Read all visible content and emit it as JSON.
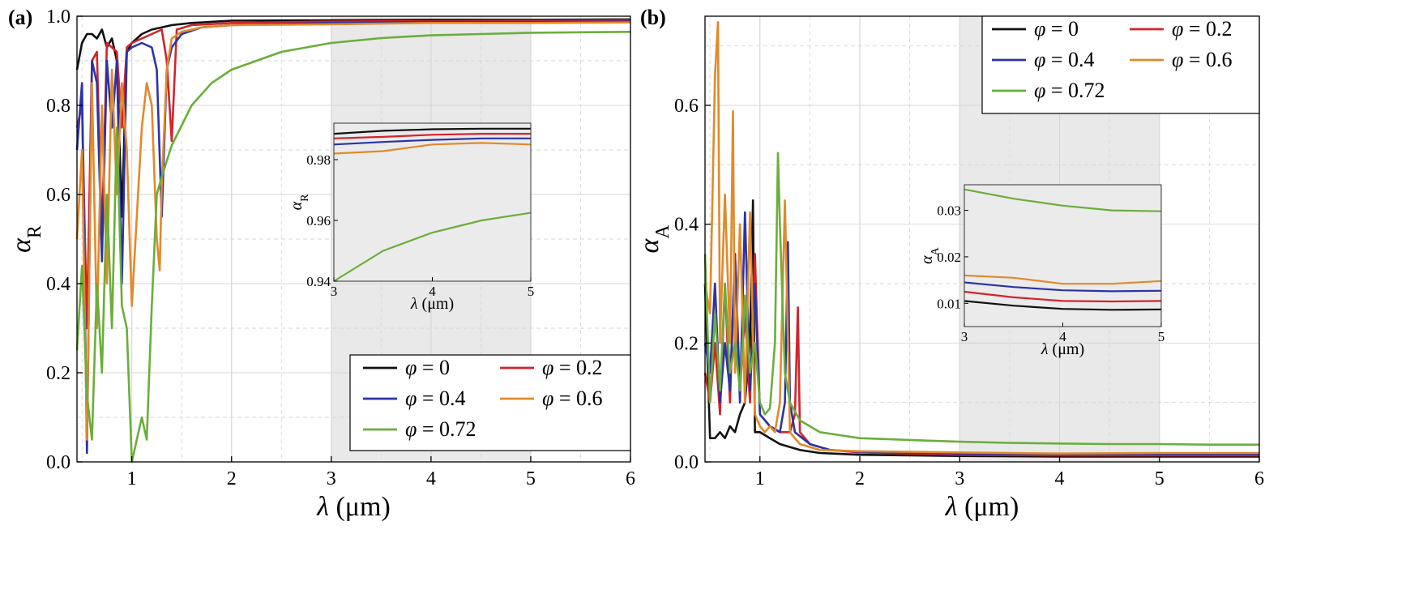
{
  "chart_data": [
    {
      "type": "line",
      "panel_label": "(a)",
      "xlabel_sym": "λ",
      "xlabel_unit": " (μm)",
      "ylabel_sym": "α",
      "ylabel_sub": "R",
      "xlim": [
        0.45,
        6
      ],
      "ylim": [
        0,
        1.0
      ],
      "xticks": [
        1,
        2,
        3,
        4,
        5,
        6
      ],
      "xtick_labels": [
        "1",
        "2",
        "3",
        "4",
        "5",
        "6"
      ],
      "yticks": [
        0,
        0.2,
        0.4,
        0.6,
        0.8,
        1.0
      ],
      "ytick_labels": [
        "0.0",
        "0.2",
        "0.4",
        "0.6",
        "0.8",
        "1.0"
      ],
      "shaded_region": [
        3,
        5
      ],
      "legend_position": "bottom-right",
      "series": [
        {
          "name": "φ = 0",
          "sym": "φ",
          "val": " = 0",
          "color": "#111111",
          "x": [
            0.45,
            0.5,
            0.55,
            0.6,
            0.65,
            0.7,
            0.75,
            0.8,
            0.85,
            0.9,
            0.95,
            1.0,
            1.1,
            1.2,
            1.4,
            1.6,
            2,
            3,
            4,
            5,
            6
          ],
          "y": [
            0.88,
            0.94,
            0.96,
            0.96,
            0.95,
            0.97,
            0.93,
            0.95,
            0.9,
            0.55,
            0.92,
            0.94,
            0.96,
            0.97,
            0.98,
            0.985,
            0.99,
            0.991,
            0.992,
            0.992,
            0.993
          ]
        },
        {
          "name": "φ = 0.2",
          "sym": "φ",
          "val": " = 0.2",
          "color": "#d4232b",
          "x": [
            0.45,
            0.5,
            0.55,
            0.6,
            0.65,
            0.7,
            0.75,
            0.8,
            0.85,
            0.9,
            0.95,
            1.0,
            1.1,
            1.2,
            1.3,
            1.35,
            1.4,
            1.45,
            1.6,
            2,
            3,
            4,
            5,
            6
          ],
          "y": [
            0.75,
            0.8,
            0.3,
            0.9,
            0.92,
            0.5,
            0.94,
            0.93,
            0.92,
            0.75,
            0.93,
            0.94,
            0.95,
            0.96,
            0.97,
            0.9,
            0.72,
            0.97,
            0.98,
            0.985,
            0.988,
            0.989,
            0.99,
            0.991
          ]
        },
        {
          "name": "φ = 0.4",
          "sym": "φ",
          "val": " = 0.4",
          "color": "#2b33a6",
          "x": [
            0.45,
            0.5,
            0.55,
            0.6,
            0.65,
            0.7,
            0.75,
            0.8,
            0.85,
            0.9,
            0.95,
            1.0,
            1.1,
            1.2,
            1.25,
            1.3,
            1.35,
            1.4,
            1.5,
            1.7,
            2,
            3,
            4,
            5,
            6
          ],
          "y": [
            0.7,
            0.85,
            0.02,
            0.9,
            0.85,
            0.45,
            0.9,
            0.75,
            0.9,
            0.4,
            0.92,
            0.93,
            0.94,
            0.93,
            0.88,
            0.55,
            0.88,
            0.93,
            0.96,
            0.975,
            0.98,
            0.985,
            0.987,
            0.987,
            0.988
          ]
        },
        {
          "name": "φ = 0.6",
          "sym": "φ",
          "val": " = 0.6",
          "color": "#e08a2c",
          "x": [
            0.45,
            0.5,
            0.55,
            0.6,
            0.65,
            0.7,
            0.75,
            0.8,
            0.85,
            0.9,
            0.95,
            1.0,
            1.05,
            1.1,
            1.15,
            1.2,
            1.25,
            1.28,
            1.3,
            1.35,
            1.4,
            1.5,
            1.7,
            2,
            3,
            4,
            5,
            6
          ],
          "y": [
            0.5,
            0.7,
            0.05,
            0.85,
            0.3,
            0.8,
            0.4,
            0.88,
            0.6,
            0.85,
            0.7,
            0.35,
            0.55,
            0.75,
            0.85,
            0.8,
            0.5,
            0.43,
            0.62,
            0.88,
            0.95,
            0.965,
            0.975,
            0.98,
            0.982,
            0.985,
            0.985,
            0.986
          ]
        },
        {
          "name": "φ = 0.72",
          "sym": "φ",
          "val": " = 0.72",
          "color": "#6aae3b",
          "x": [
            0.45,
            0.5,
            0.55,
            0.6,
            0.65,
            0.7,
            0.75,
            0.8,
            0.85,
            0.9,
            0.95,
            1.0,
            1.05,
            1.1,
            1.15,
            1.2,
            1.25,
            1.3,
            1.4,
            1.6,
            1.8,
            2.0,
            2.5,
            3.0,
            3.5,
            4.0,
            4.5,
            5.0,
            5.5,
            6.0
          ],
          "y": [
            0.25,
            0.44,
            0.15,
            0.05,
            0.4,
            0.2,
            0.6,
            0.3,
            0.75,
            0.35,
            0.3,
            0.0,
            0.05,
            0.1,
            0.05,
            0.35,
            0.6,
            0.64,
            0.71,
            0.8,
            0.85,
            0.88,
            0.92,
            0.94,
            0.951,
            0.957,
            0.96,
            0.963,
            0.964,
            0.965
          ]
        }
      ],
      "inset": {
        "xlim": [
          3,
          5
        ],
        "ylim": [
          0.94,
          0.992
        ],
        "xticks": [
          3,
          4,
          5
        ],
        "xtick_labels": [
          "3",
          "4",
          "5"
        ],
        "yticks": [
          0.94,
          0.96,
          0.98
        ],
        "ytick_labels": [
          "0.94",
          "0.96",
          "0.98"
        ],
        "xlabel_sym": "λ",
        "xlabel_unit": " (μm)",
        "ylabel_sym": "α",
        "ylabel_sub": "R",
        "series_y": [
          [
            0.9885,
            0.9895,
            0.99,
            0.9902,
            0.9902
          ],
          [
            0.987,
            0.9875,
            0.9882,
            0.9885,
            0.9885
          ],
          [
            0.985,
            0.9858,
            0.9865,
            0.987,
            0.987
          ],
          [
            0.982,
            0.9828,
            0.985,
            0.9855,
            0.985
          ],
          [
            0.94,
            0.95,
            0.956,
            0.96,
            0.9625
          ]
        ],
        "series_x": [
          3,
          3.5,
          4,
          4.5,
          5
        ]
      }
    },
    {
      "type": "line",
      "panel_label": "(b)",
      "xlabel_sym": "λ",
      "xlabel_unit": " (μm)",
      "ylabel_sym": "α",
      "ylabel_sub": "A",
      "xlim": [
        0.45,
        6
      ],
      "ylim": [
        0,
        0.75
      ],
      "xticks": [
        1,
        2,
        3,
        4,
        5,
        6
      ],
      "xtick_labels": [
        "1",
        "2",
        "3",
        "4",
        "5",
        "6"
      ],
      "yticks": [
        0,
        0.2,
        0.4,
        0.6
      ],
      "ytick_labels": [
        "0.0",
        "0.2",
        "0.4",
        "0.6"
      ],
      "shaded_region": [
        3,
        5
      ],
      "legend_position": "top-right",
      "series": [
        {
          "name": "φ = 0",
          "sym": "φ",
          "val": " = 0",
          "color": "#111111",
          "x": [
            0.45,
            0.5,
            0.55,
            0.6,
            0.65,
            0.7,
            0.75,
            0.8,
            0.85,
            0.9,
            0.93,
            0.95,
            1.0,
            1.1,
            1.2,
            1.4,
            1.6,
            2,
            3,
            4,
            5,
            6
          ],
          "y": [
            0.3,
            0.04,
            0.04,
            0.05,
            0.04,
            0.06,
            0.05,
            0.08,
            0.1,
            0.2,
            0.44,
            0.05,
            0.05,
            0.04,
            0.03,
            0.02,
            0.015,
            0.012,
            0.01,
            0.009,
            0.009,
            0.009
          ]
        },
        {
          "name": "φ = 0.2",
          "sym": "φ",
          "val": " = 0.2",
          "color": "#d4232b",
          "x": [
            0.45,
            0.5,
            0.55,
            0.6,
            0.65,
            0.7,
            0.75,
            0.8,
            0.85,
            0.9,
            0.95,
            1.0,
            1.1,
            1.2,
            1.3,
            1.35,
            1.38,
            1.4,
            1.5,
            1.7,
            2,
            3,
            4,
            5,
            6
          ],
          "y": [
            0.15,
            0.1,
            0.2,
            0.08,
            0.3,
            0.1,
            0.35,
            0.12,
            0.25,
            0.1,
            0.35,
            0.08,
            0.06,
            0.05,
            0.05,
            0.08,
            0.26,
            0.05,
            0.03,
            0.02,
            0.016,
            0.012,
            0.011,
            0.011,
            0.011
          ]
        },
        {
          "name": "φ = 0.4",
          "sym": "φ",
          "val": " = 0.4",
          "color": "#2b33a6",
          "x": [
            0.45,
            0.5,
            0.55,
            0.6,
            0.65,
            0.7,
            0.75,
            0.8,
            0.85,
            0.9,
            0.95,
            1.0,
            1.1,
            1.2,
            1.25,
            1.28,
            1.3,
            1.35,
            1.5,
            1.7,
            2,
            3,
            4,
            5,
            6
          ],
          "y": [
            0.2,
            0.15,
            0.3,
            0.1,
            0.2,
            0.12,
            0.35,
            0.1,
            0.42,
            0.12,
            0.3,
            0.08,
            0.06,
            0.05,
            0.1,
            0.37,
            0.1,
            0.05,
            0.03,
            0.02,
            0.017,
            0.014,
            0.013,
            0.013,
            0.013
          ]
        },
        {
          "name": "φ = 0.6",
          "sym": "φ",
          "val": " = 0.6",
          "color": "#e08a2c",
          "x": [
            0.45,
            0.5,
            0.55,
            0.58,
            0.6,
            0.65,
            0.7,
            0.73,
            0.75,
            0.8,
            0.85,
            0.9,
            0.95,
            1.0,
            1.05,
            1.1,
            1.15,
            1.2,
            1.25,
            1.3,
            1.4,
            1.6,
            2,
            3,
            4,
            5,
            6
          ],
          "y": [
            0.3,
            0.25,
            0.65,
            0.74,
            0.2,
            0.45,
            0.2,
            0.59,
            0.15,
            0.4,
            0.1,
            0.42,
            0.08,
            0.06,
            0.05,
            0.06,
            0.05,
            0.1,
            0.44,
            0.05,
            0.03,
            0.02,
            0.018,
            0.016,
            0.014,
            0.015,
            0.015
          ]
        },
        {
          "name": "φ = 0.72",
          "sym": "φ",
          "val": " = 0.72",
          "color": "#6aae3b",
          "x": [
            0.45,
            0.5,
            0.55,
            0.6,
            0.65,
            0.7,
            0.75,
            0.8,
            0.85,
            0.9,
            0.95,
            1.0,
            1.05,
            1.1,
            1.15,
            1.18,
            1.2,
            1.25,
            1.3,
            1.4,
            1.6,
            1.8,
            2.0,
            2.5,
            3.0,
            3.5,
            4.0,
            4.5,
            5.0,
            5.5,
            6.0
          ],
          "y": [
            0.35,
            0.1,
            0.25,
            0.12,
            0.3,
            0.15,
            0.2,
            0.12,
            0.28,
            0.15,
            0.2,
            0.1,
            0.08,
            0.09,
            0.2,
            0.52,
            0.4,
            0.15,
            0.1,
            0.07,
            0.05,
            0.045,
            0.04,
            0.037,
            0.034,
            0.032,
            0.031,
            0.03,
            0.03,
            0.029,
            0.029
          ]
        }
      ],
      "legend_cols": 2,
      "inset": {
        "xlim": [
          3,
          5
        ],
        "ylim": [
          0.005,
          0.0355
        ],
        "xticks": [
          3,
          4,
          5
        ],
        "xtick_labels": [
          "3",
          "4",
          "5"
        ],
        "yticks": [
          0.01,
          0.02,
          0.03
        ],
        "ytick_labels": [
          "0.01",
          "0.02",
          "0.03"
        ],
        "xlabel_sym": "λ",
        "xlabel_unit": " (μm)",
        "ylabel_sym": "α",
        "ylabel_sub": "A",
        "series_y": [
          [
            0.0105,
            0.0095,
            0.0088,
            0.0086,
            0.0087
          ],
          [
            0.0125,
            0.0113,
            0.0105,
            0.0104,
            0.0105
          ],
          [
            0.0145,
            0.0135,
            0.0128,
            0.0126,
            0.0127
          ],
          [
            0.016,
            0.0155,
            0.0142,
            0.0142,
            0.0148
          ],
          [
            0.0345,
            0.0325,
            0.031,
            0.03,
            0.0298
          ]
        ],
        "series_x": [
          3,
          3.5,
          4,
          4.5,
          5
        ]
      }
    }
  ]
}
